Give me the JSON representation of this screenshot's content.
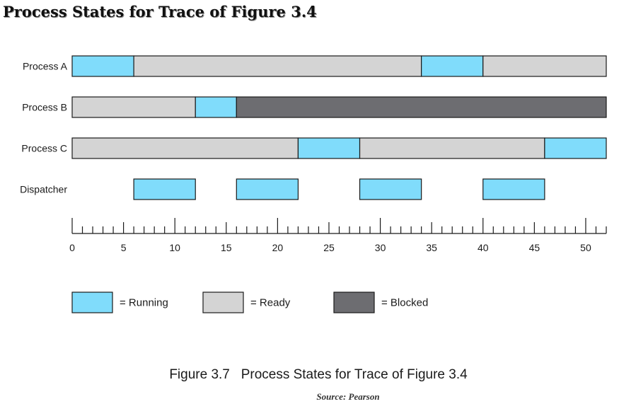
{
  "title": "Process States for Trace of Figure 3.4",
  "caption": "Figure 3.7   Process States for Trace of Figure 3.4",
  "source": "Source: Pearson",
  "colors": {
    "running": "#80dcfb",
    "ready": "#d4d4d4",
    "blocked": "#6d6d71",
    "outline": "#1a1a1a"
  },
  "chart_data": {
    "type": "gantt",
    "x_range": [
      0,
      52
    ],
    "ticks": {
      "minor_step": 1,
      "mid_step": 5,
      "major_step": 10,
      "labels": [
        "0",
        "5",
        "10",
        "15",
        "20",
        "25",
        "30",
        "35",
        "40",
        "45",
        "50"
      ]
    },
    "rows": [
      {
        "label": "Process A",
        "segments": [
          {
            "start": 0,
            "end": 6,
            "state": "running"
          },
          {
            "start": 6,
            "end": 34,
            "state": "ready"
          },
          {
            "start": 34,
            "end": 40,
            "state": "running"
          },
          {
            "start": 40,
            "end": 52,
            "state": "ready"
          }
        ]
      },
      {
        "label": "Process B",
        "segments": [
          {
            "start": 0,
            "end": 12,
            "state": "ready"
          },
          {
            "start": 12,
            "end": 16,
            "state": "running"
          },
          {
            "start": 16,
            "end": 52,
            "state": "blocked"
          }
        ]
      },
      {
        "label": "Process C",
        "segments": [
          {
            "start": 0,
            "end": 22,
            "state": "ready"
          },
          {
            "start": 22,
            "end": 28,
            "state": "running"
          },
          {
            "start": 28,
            "end": 46,
            "state": "ready"
          },
          {
            "start": 46,
            "end": 52,
            "state": "running"
          }
        ]
      },
      {
        "label": "Dispatcher",
        "segments": [
          {
            "start": 6,
            "end": 12,
            "state": "running"
          },
          {
            "start": 16,
            "end": 22,
            "state": "running"
          },
          {
            "start": 28,
            "end": 34,
            "state": "running"
          },
          {
            "start": 40,
            "end": 46,
            "state": "running"
          }
        ]
      }
    ],
    "legend": [
      {
        "state": "running",
        "label": "= Running"
      },
      {
        "state": "ready",
        "label": "= Ready"
      },
      {
        "state": "blocked",
        "label": "= Blocked"
      }
    ]
  }
}
